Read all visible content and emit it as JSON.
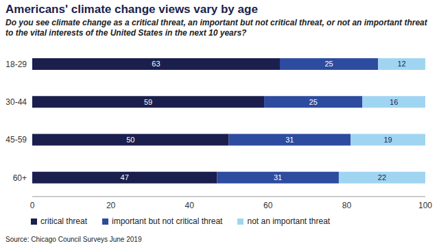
{
  "chart_data": {
    "type": "bar",
    "title": "Americans' climate change views vary by age",
    "subtitle": "Do you see climate change as a critical threat, an important but not critical threat, or not an important threat to the vital interests of the United States in the next 10 years?",
    "annotations": [
      "Source: Chicago Council Surveys June 2019"
    ],
    "categories": [
      "18-29",
      "30-44",
      "45-59",
      "60+"
    ],
    "series": [
      {
        "name": "critical threat",
        "color": "#1b1f4d",
        "values": [
          63,
          59,
          50,
          47
        ]
      },
      {
        "name": "important but not critical threat",
        "color": "#2d4b9f",
        "values": [
          25,
          25,
          31,
          31
        ]
      },
      {
        "name": "not an important threat",
        "color": "#a0d5f2",
        "values": [
          12,
          16,
          19,
          22
        ]
      }
    ],
    "xlim": [
      0,
      100
    ],
    "xticks": [
      0,
      20,
      40,
      60,
      80,
      100
    ],
    "orientation": "horizontal",
    "stacked": true,
    "data_labels": true,
    "legend": "bottom",
    "grid": false
  }
}
